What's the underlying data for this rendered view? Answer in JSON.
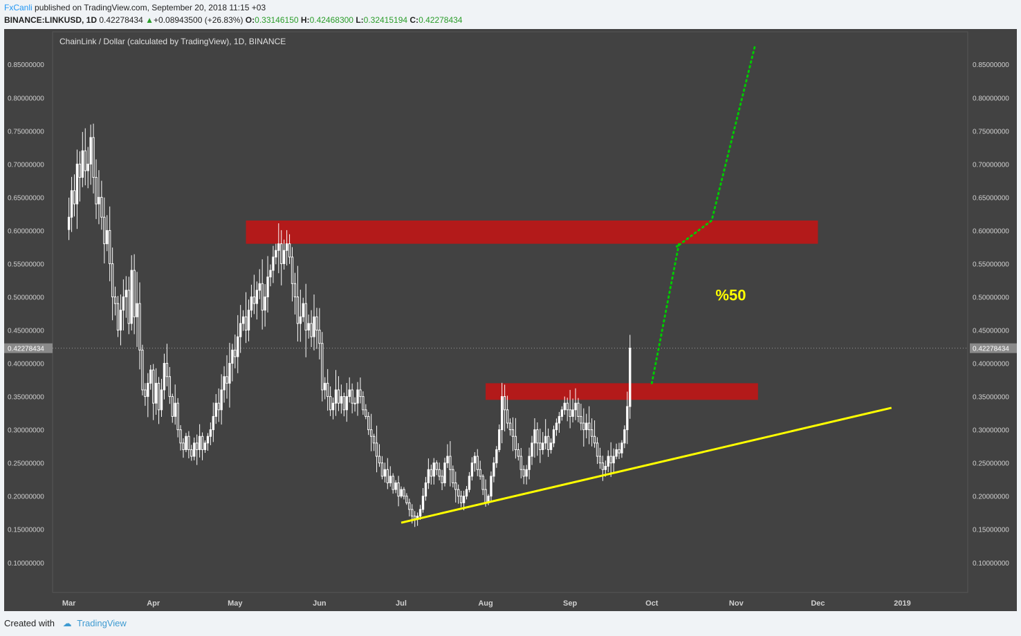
{
  "header": {
    "author": "FxCanli",
    "published_text": "published on TradingView.com, September 20, 2018 11:15 +03",
    "symbol": "BINANCE:LINKUSD, 1D",
    "last": "0.42278434",
    "change_arrow": "▲",
    "change": "+0.08943500 (+26.83%)",
    "o_label": "O:",
    "o": "0.33146150",
    "h_label": "H:",
    "h": "0.42468300",
    "l_label": "L:",
    "l": "0.32415194",
    "c_label": "C:",
    "c": "0.42278434"
  },
  "footer": {
    "created_with": "Created with",
    "brand": "TradingView"
  },
  "colors": {
    "panel": "#424242",
    "zone": "#b31a1a",
    "trendline": "#ffff00",
    "projection": "#00c800",
    "candle": "#ffffff",
    "annotation": "#ffff00"
  },
  "chart_data": {
    "type": "candlestick",
    "title": "ChainLink / Dollar (calculated by TradingView), 1D, BINANCE",
    "y_ticks": [
      "0.85000000",
      "0.80000000",
      "0.75000000",
      "0.70000000",
      "0.65000000",
      "0.60000000",
      "0.55000000",
      "0.50000000",
      "0.45000000",
      "0.40000000",
      "0.35000000",
      "0.30000000",
      "0.25000000",
      "0.20000000",
      "0.15000000",
      "0.10000000"
    ],
    "ylim": [
      0.055,
      0.895
    ],
    "x_ticks": [
      "Mar",
      "Apr",
      "May",
      "Jun",
      "Jul",
      "Aug",
      "Sep",
      "Oct",
      "Nov",
      "Dec",
      "2019"
    ],
    "x_tick_days": [
      0,
      31,
      61,
      92,
      122,
      153,
      184,
      214,
      245,
      275,
      306
    ],
    "xlim": [
      -6,
      330
    ],
    "current_price": "0.42278434",
    "closes": [
      0.62,
      0.66,
      0.64,
      0.7,
      0.68,
      0.72,
      0.69,
      0.7,
      0.74,
      0.68,
      0.64,
      0.65,
      0.62,
      0.58,
      0.6,
      0.55,
      0.5,
      0.49,
      0.45,
      0.48,
      0.5,
      0.51,
      0.46,
      0.54,
      0.47,
      0.49,
      0.42,
      0.36,
      0.35,
      0.37,
      0.39,
      0.34,
      0.37,
      0.33,
      0.36,
      0.4,
      0.38,
      0.35,
      0.32,
      0.34,
      0.3,
      0.28,
      0.27,
      0.29,
      0.27,
      0.26,
      0.28,
      0.27,
      0.29,
      0.27,
      0.28,
      0.29,
      0.3,
      0.32,
      0.34,
      0.33,
      0.36,
      0.38,
      0.37,
      0.4,
      0.42,
      0.41,
      0.44,
      0.46,
      0.47,
      0.45,
      0.48,
      0.5,
      0.49,
      0.51,
      0.52,
      0.48,
      0.5,
      0.53,
      0.54,
      0.56,
      0.57,
      0.58,
      0.55,
      0.57,
      0.58,
      0.56,
      0.52,
      0.5,
      0.46,
      0.47,
      0.49,
      0.45,
      0.46,
      0.44,
      0.47,
      0.45,
      0.43,
      0.36,
      0.37,
      0.35,
      0.33,
      0.34,
      0.36,
      0.34,
      0.35,
      0.33,
      0.35,
      0.36,
      0.34,
      0.34,
      0.36,
      0.35,
      0.33,
      0.32,
      0.3,
      0.29,
      0.28,
      0.26,
      0.25,
      0.23,
      0.24,
      0.22,
      0.23,
      0.21,
      0.22,
      0.2,
      0.21,
      0.2,
      0.19,
      0.18,
      0.17,
      0.165,
      0.17,
      0.18,
      0.2,
      0.22,
      0.24,
      0.23,
      0.25,
      0.24,
      0.23,
      0.22,
      0.25,
      0.26,
      0.24,
      0.22,
      0.21,
      0.2,
      0.19,
      0.2,
      0.21,
      0.23,
      0.25,
      0.26,
      0.24,
      0.23,
      0.21,
      0.19,
      0.2,
      0.23,
      0.25,
      0.27,
      0.3,
      0.35,
      0.33,
      0.31,
      0.3,
      0.29,
      0.27,
      0.26,
      0.24,
      0.23,
      0.24,
      0.26,
      0.28,
      0.3,
      0.28,
      0.27,
      0.28,
      0.29,
      0.27,
      0.28,
      0.3,
      0.31,
      0.32,
      0.33,
      0.34,
      0.33,
      0.32,
      0.33,
      0.34,
      0.32,
      0.31,
      0.3,
      0.31,
      0.3,
      0.29,
      0.28,
      0.26,
      0.25,
      0.24,
      0.245,
      0.26,
      0.25,
      0.26,
      0.27,
      0.265,
      0.28,
      0.3,
      0.335,
      0.4228
    ],
    "resistance_zones": [
      {
        "day_start": 65,
        "day_end": 275,
        "low": 0.58,
        "high": 0.615
      },
      {
        "day_start": 153,
        "day_end": 253,
        "low": 0.345,
        "high": 0.37
      }
    ],
    "trendline": {
      "x": [
        122,
        302
      ],
      "y": [
        0.16,
        0.333
      ]
    },
    "projection": {
      "x": [
        214,
        224,
        223,
        236,
        252
      ],
      "y": [
        0.37,
        0.58,
        0.575,
        0.615,
        0.88
      ]
    },
    "annotation": "%50",
    "annotation_pos": {
      "day": 243,
      "price": 0.495
    }
  }
}
